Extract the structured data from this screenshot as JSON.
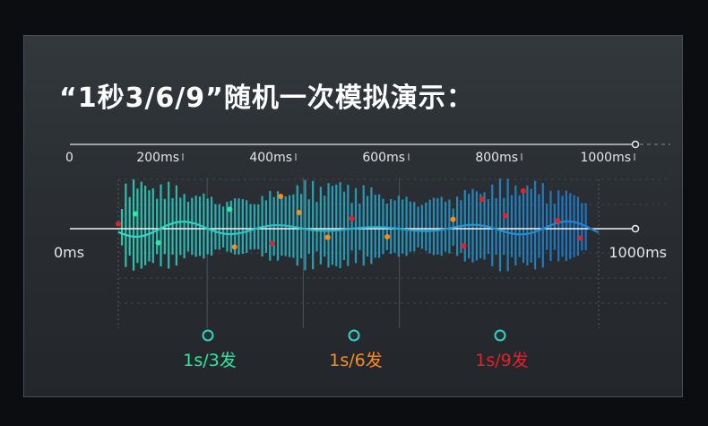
{
  "title": "“1秒3/6/9”随机一次模拟演示：",
  "colors": {
    "green": "#2fe6a0",
    "orange": "#ff8a1c",
    "red": "#e4202a",
    "wave_start": "#2de0c4",
    "wave_end": "#1e7fd8",
    "axis": "#e8e8e8"
  },
  "chart_data": {
    "type": "line",
    "top_axis": {
      "range": [
        0,
        1000
      ],
      "tick_labels": [
        "0",
        "200ms",
        "400ms",
        "600ms",
        "800ms",
        "1000ms"
      ],
      "ticks": [
        0,
        200,
        400,
        600,
        800,
        1000
      ]
    },
    "mid_axis": {
      "range": [
        0,
        1000
      ],
      "start_label": "0ms",
      "end_label": "1000ms"
    },
    "legend": [
      {
        "label": "1s/3发",
        "color": "#2fe6a0"
      },
      {
        "label": "1s/6发",
        "color": "#ff8a1c"
      },
      {
        "label": "1s/9发",
        "color": "#e4202a"
      }
    ],
    "events": [
      {
        "t": 0,
        "v": 0.18,
        "series": "1s/9发"
      },
      {
        "t": 35,
        "v": 0.55,
        "series": "1s/3发"
      },
      {
        "t": 83,
        "v": -0.52,
        "series": "1s/3发"
      },
      {
        "t": 232,
        "v": 0.72,
        "series": "1s/3发"
      },
      {
        "t": 242,
        "v": -0.68,
        "series": "1s/6发"
      },
      {
        "t": 320,
        "v": -0.55,
        "series": "1s/9发"
      },
      {
        "t": 338,
        "v": 1.2,
        "series": "1s/6发"
      },
      {
        "t": 376,
        "v": 0.6,
        "series": "1s/6发"
      },
      {
        "t": 436,
        "v": -0.32,
        "series": "1s/6发"
      },
      {
        "t": 486,
        "v": 0.38,
        "series": "1s/9发"
      },
      {
        "t": 560,
        "v": -0.3,
        "series": "1s/6发"
      },
      {
        "t": 697,
        "v": 0.35,
        "series": "1s/6发"
      },
      {
        "t": 719,
        "v": -0.64,
        "series": "1s/9发"
      },
      {
        "t": 757,
        "v": 1.1,
        "series": "1s/9发"
      },
      {
        "t": 805,
        "v": 0.48,
        "series": "1s/9发"
      },
      {
        "t": 843,
        "v": 1.4,
        "series": "1s/9发"
      },
      {
        "t": 915,
        "v": 0.3,
        "series": "1s/9发"
      },
      {
        "t": 962,
        "v": -0.35,
        "series": "1s/9发"
      }
    ]
  }
}
